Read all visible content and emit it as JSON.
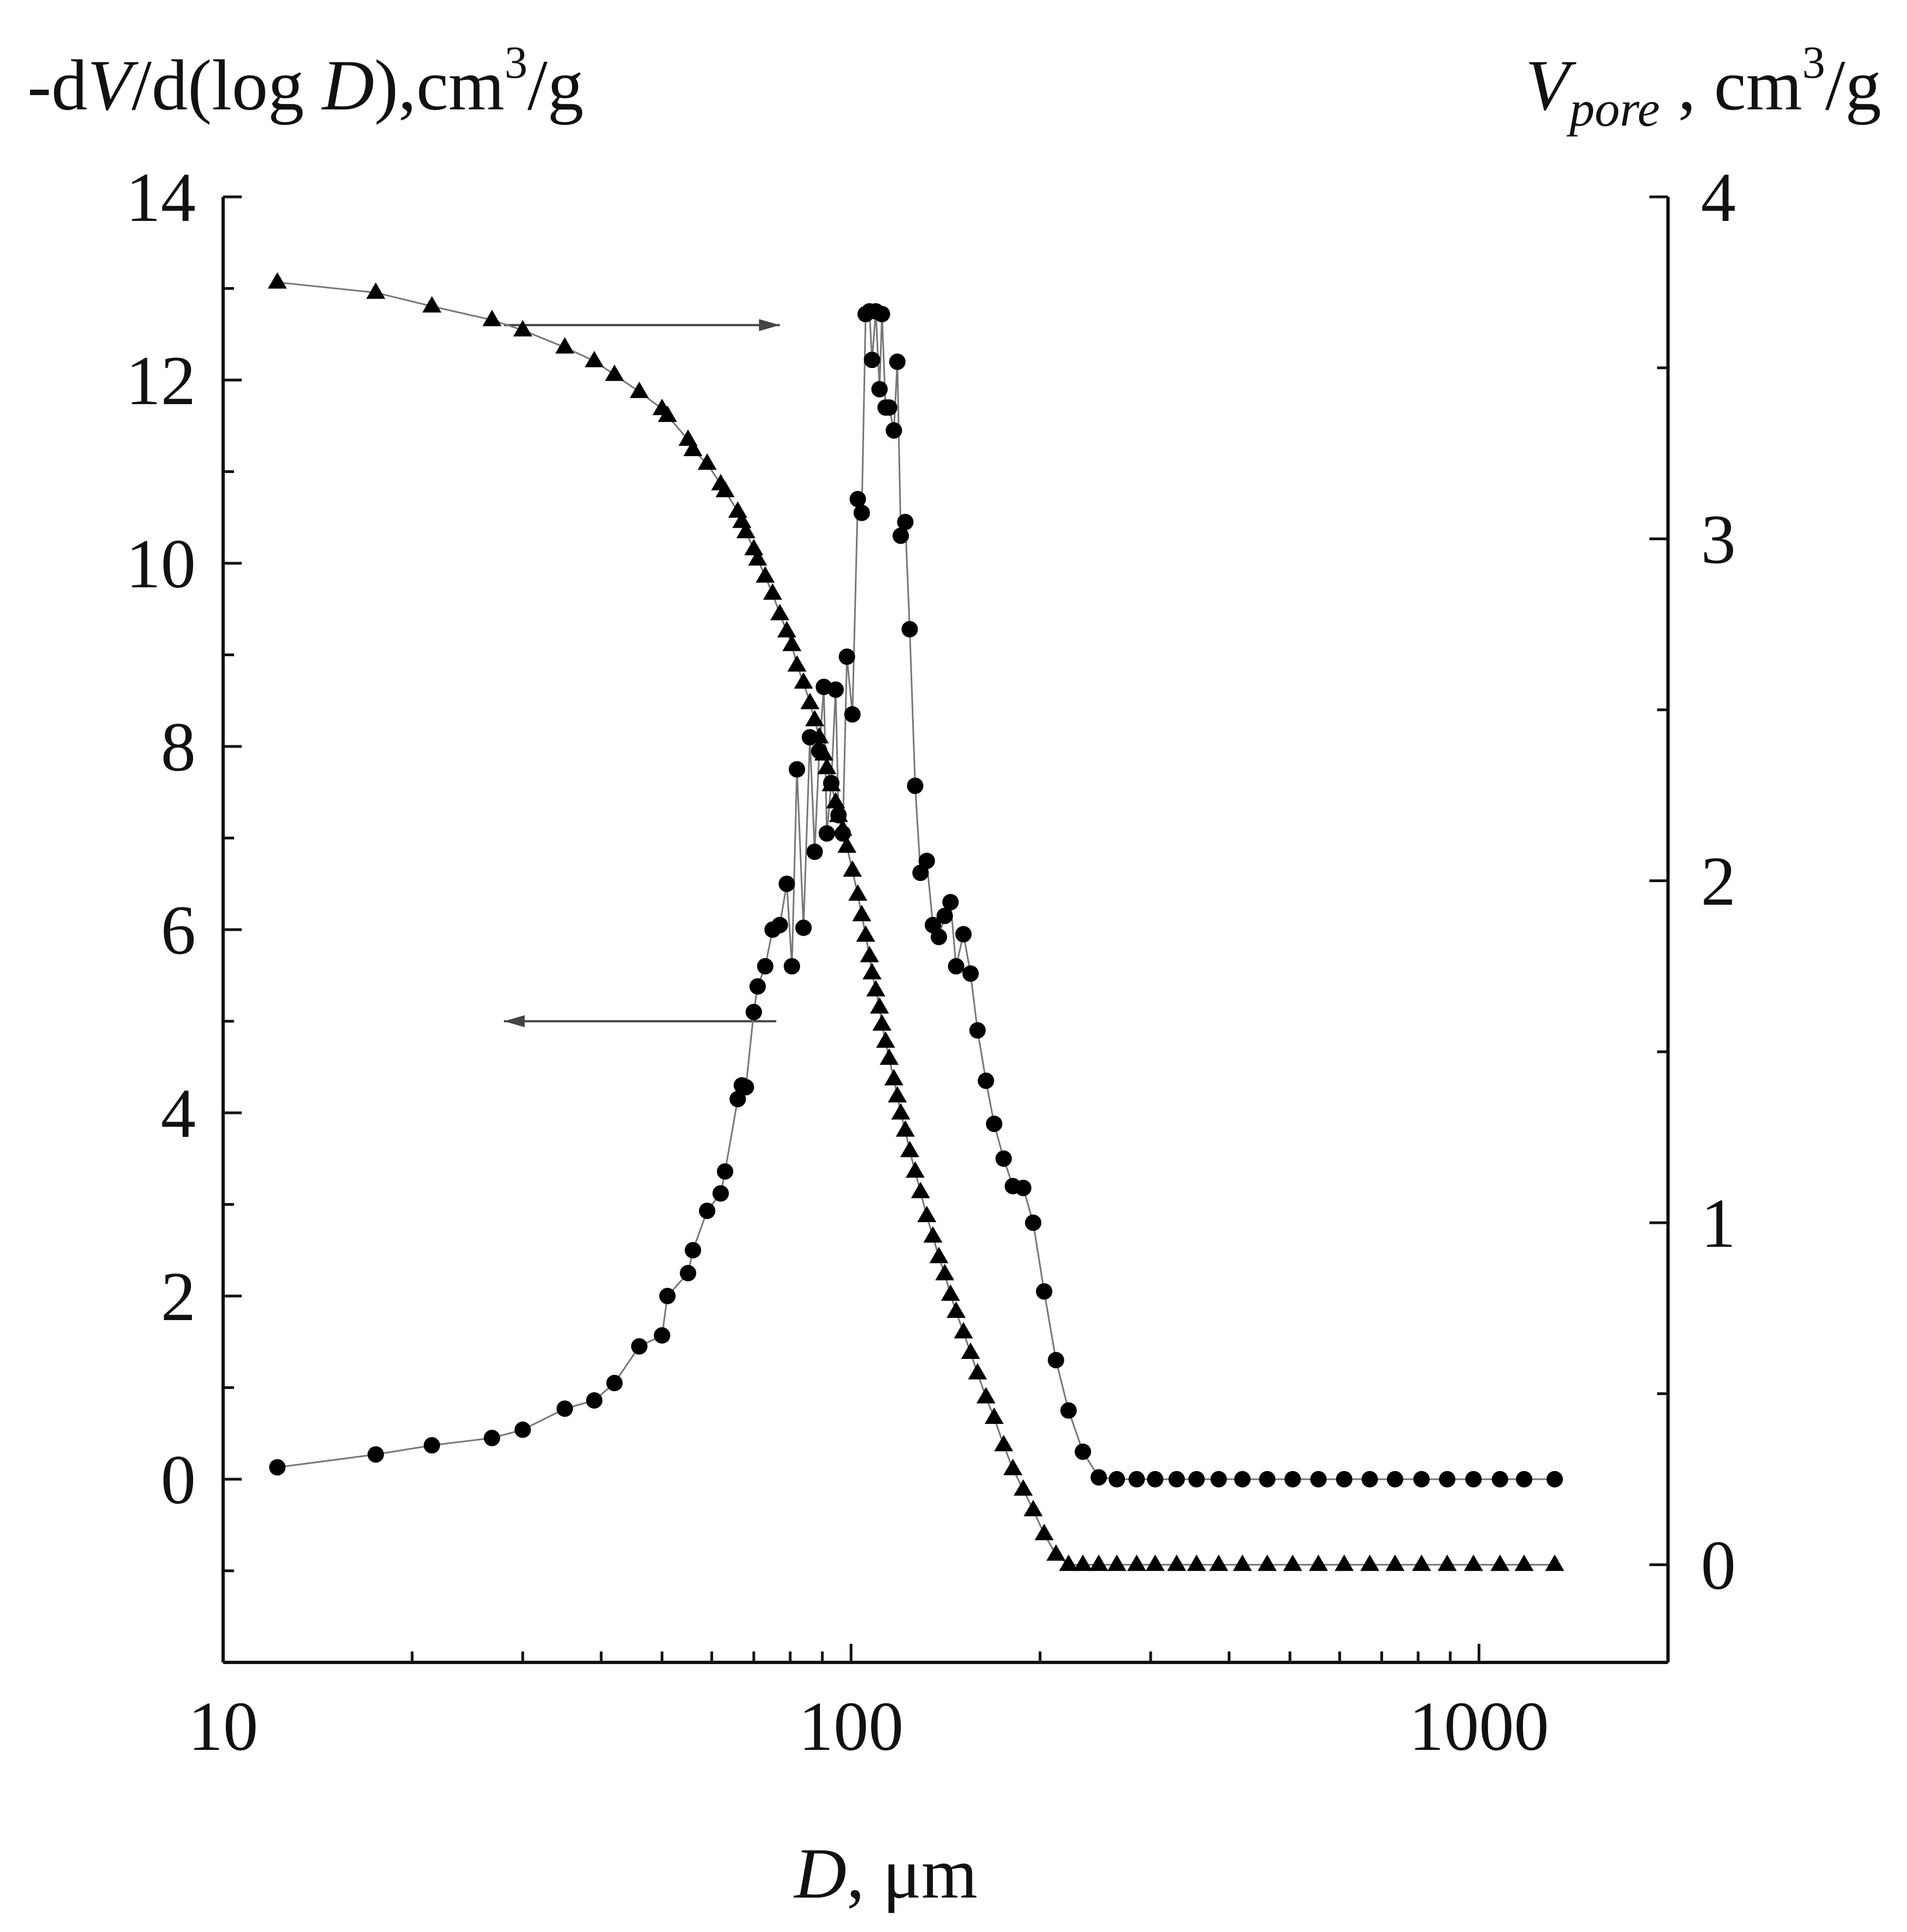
{
  "chart_data": {
    "type": "scatter",
    "x_scale": "log",
    "xlim": [
      10,
      2000
    ],
    "ylim_left": [
      -2,
      14
    ],
    "ylim_right": [
      -0.2857,
      4
    ],
    "xlabel": {
      "italic": "D",
      "rest": ", μm"
    },
    "ylabel_left": {
      "pre": "-d",
      "italic1": "V",
      "mid": "/d(log ",
      "italic2": "D",
      "post": "),cm",
      "sup": "3",
      "tail": "/g"
    },
    "ylabel_right": {
      "italic": "V",
      "sub": "pore",
      "post": " , cm",
      "sup": "3",
      "tail": "/g"
    },
    "x_ticks": [
      10,
      100,
      1000
    ],
    "x_tick_labels": [
      "10",
      "100",
      "1000"
    ],
    "y_left_ticks": [
      0,
      2,
      4,
      6,
      8,
      10,
      12,
      14
    ],
    "y_left_tick_labels": [
      "0",
      "2",
      "4",
      "6",
      "8",
      "10",
      "12",
      "14"
    ],
    "y_right_ticks": [
      0,
      1,
      2,
      3,
      4
    ],
    "y_right_tick_labels": [
      "0",
      "1",
      "2",
      "3",
      "4"
    ],
    "annotations": [
      {
        "text": "arrow pointing right to cumulative pore volume (triangles, right axis)",
        "from": [
          28,
          12.6
        ],
        "to": [
          77,
          12.6
        ],
        "direction": "right"
      },
      {
        "text": "arrow pointing left to differential distribution (circles, left axis)",
        "from": [
          76,
          5.0
        ],
        "to": [
          28,
          5.0
        ],
        "direction": "left"
      }
    ],
    "series": [
      {
        "name": "-dV/d(log D)",
        "axis": "left",
        "marker": "circle",
        "points": [
          [
            12.2,
            0.13
          ],
          [
            17.5,
            0.27
          ],
          [
            21.5,
            0.37
          ],
          [
            26.8,
            0.45
          ],
          [
            30.0,
            0.54
          ],
          [
            35.0,
            0.77
          ],
          [
            39.0,
            0.86
          ],
          [
            42.0,
            1.05
          ],
          [
            46.0,
            1.45
          ],
          [
            50.0,
            1.57
          ],
          [
            51.0,
            2.0
          ],
          [
            55.0,
            2.25
          ],
          [
            56.0,
            2.5
          ],
          [
            59.0,
            2.93
          ],
          [
            62.0,
            3.12
          ],
          [
            63.0,
            3.36
          ],
          [
            66.0,
            4.15
          ],
          [
            67.0,
            4.3
          ],
          [
            68.0,
            4.28
          ],
          [
            70.0,
            5.1
          ],
          [
            71.0,
            5.38
          ],
          [
            73.0,
            5.6
          ],
          [
            75.0,
            6.0
          ],
          [
            77.0,
            6.05
          ],
          [
            79.0,
            6.5
          ],
          [
            80.5,
            5.6
          ],
          [
            82.0,
            7.75
          ],
          [
            84.0,
            6.02
          ],
          [
            86.0,
            8.1
          ],
          [
            87.5,
            6.85
          ],
          [
            89.0,
            7.95
          ],
          [
            90.5,
            8.65
          ],
          [
            91.5,
            7.05
          ],
          [
            93.0,
            7.6
          ],
          [
            94.5,
            8.62
          ],
          [
            95.5,
            7.25
          ],
          [
            97.0,
            7.05
          ],
          [
            98.5,
            8.98
          ],
          [
            100.5,
            8.35
          ],
          [
            102.5,
            10.7
          ],
          [
            104.0,
            10.55
          ],
          [
            105.5,
            12.72
          ],
          [
            107.0,
            12.75
          ],
          [
            108.0,
            12.22
          ],
          [
            109.5,
            12.75
          ],
          [
            111.0,
            11.9
          ],
          [
            112.0,
            12.72
          ],
          [
            113.5,
            11.7
          ],
          [
            115.0,
            11.7
          ],
          [
            117.0,
            11.45
          ],
          [
            118.5,
            12.2
          ],
          [
            120.0,
            10.3
          ],
          [
            122.0,
            10.45
          ],
          [
            124.0,
            9.28
          ],
          [
            126.5,
            7.57
          ],
          [
            129.0,
            6.62
          ],
          [
            132.0,
            6.75
          ],
          [
            135.0,
            6.05
          ],
          [
            138.0,
            5.92
          ],
          [
            141.0,
            6.15
          ],
          [
            144.0,
            6.3
          ],
          [
            147.0,
            5.6
          ],
          [
            151.0,
            5.95
          ],
          [
            155.0,
            5.52
          ],
          [
            159.0,
            4.9
          ],
          [
            164.0,
            4.35
          ],
          [
            169.0,
            3.88
          ],
          [
            175.0,
            3.5
          ],
          [
            181.0,
            3.2
          ],
          [
            188.0,
            3.18
          ],
          [
            195.0,
            2.8
          ],
          [
            203.0,
            2.05
          ],
          [
            212.0,
            1.3
          ],
          [
            222.0,
            0.75
          ],
          [
            234.0,
            0.3
          ],
          [
            248.0,
            0.02
          ],
          [
            265.0,
            0.0
          ],
          [
            285.0,
            0.0
          ],
          [
            305.0,
            0.0
          ],
          [
            330.0,
            0.0
          ],
          [
            355.0,
            0.0
          ],
          [
            385.0,
            0.0
          ],
          [
            420.0,
            0.0
          ],
          [
            460.0,
            0.0
          ],
          [
            505.0,
            0.0
          ],
          [
            555.0,
            0.0
          ],
          [
            610.0,
            0.0
          ],
          [
            670.0,
            0.0
          ],
          [
            735.0,
            0.0
          ],
          [
            810.0,
            0.0
          ],
          [
            890.0,
            0.0
          ],
          [
            980.0,
            0.0
          ],
          [
            1080.0,
            0.0
          ],
          [
            1180.0,
            0.0
          ],
          [
            1320.0,
            0.0
          ]
        ]
      },
      {
        "name": "V_pore",
        "axis": "right",
        "marker": "triangle",
        "points": [
          [
            12.2,
            3.75
          ],
          [
            17.5,
            3.72
          ],
          [
            21.5,
            3.68
          ],
          [
            26.8,
            3.64
          ],
          [
            30.0,
            3.61
          ],
          [
            35.0,
            3.56
          ],
          [
            39.0,
            3.52
          ],
          [
            42.0,
            3.48
          ],
          [
            46.0,
            3.43
          ],
          [
            50.0,
            3.38
          ],
          [
            51.0,
            3.36
          ],
          [
            55.0,
            3.29
          ],
          [
            56.0,
            3.26
          ],
          [
            59.0,
            3.22
          ],
          [
            62.0,
            3.16
          ],
          [
            63.0,
            3.14
          ],
          [
            66.0,
            3.08
          ],
          [
            67.0,
            3.05
          ],
          [
            68.0,
            3.02
          ],
          [
            70.0,
            2.97
          ],
          [
            71.0,
            2.94
          ],
          [
            73.0,
            2.89
          ],
          [
            75.0,
            2.84
          ],
          [
            77.0,
            2.78
          ],
          [
            79.0,
            2.73
          ],
          [
            80.5,
            2.69
          ],
          [
            82.0,
            2.63
          ],
          [
            84.0,
            2.58
          ],
          [
            86.0,
            2.52
          ],
          [
            87.5,
            2.47
          ],
          [
            89.0,
            2.42
          ],
          [
            90.5,
            2.37
          ],
          [
            91.5,
            2.33
          ],
          [
            93.0,
            2.28
          ],
          [
            94.5,
            2.23
          ],
          [
            95.5,
            2.19
          ],
          [
            97.0,
            2.15
          ],
          [
            98.5,
            2.1
          ],
          [
            100.5,
            2.03
          ],
          [
            102.5,
            1.96
          ],
          [
            104.0,
            1.9
          ],
          [
            105.5,
            1.84
          ],
          [
            107.0,
            1.78
          ],
          [
            108.0,
            1.73
          ],
          [
            109.5,
            1.68
          ],
          [
            111.0,
            1.63
          ],
          [
            112.0,
            1.58
          ],
          [
            113.5,
            1.53
          ],
          [
            115.0,
            1.48
          ],
          [
            117.0,
            1.42
          ],
          [
            118.5,
            1.37
          ],
          [
            120.0,
            1.32
          ],
          [
            122.0,
            1.27
          ],
          [
            124.0,
            1.21
          ],
          [
            126.5,
            1.15
          ],
          [
            129.0,
            1.09
          ],
          [
            132.0,
            1.02
          ],
          [
            135.0,
            0.96
          ],
          [
            138.0,
            0.9
          ],
          [
            141.0,
            0.85
          ],
          [
            144.0,
            0.79
          ],
          [
            147.0,
            0.74
          ],
          [
            151.0,
            0.68
          ],
          [
            155.0,
            0.62
          ],
          [
            159.0,
            0.56
          ],
          [
            164.0,
            0.49
          ],
          [
            169.0,
            0.43
          ],
          [
            175.0,
            0.35
          ],
          [
            181.0,
            0.28
          ],
          [
            188.0,
            0.22
          ],
          [
            195.0,
            0.16
          ],
          [
            203.0,
            0.09
          ],
          [
            212.0,
            0.03
          ],
          [
            222.0,
            0.0
          ],
          [
            234.0,
            0.0
          ],
          [
            248.0,
            0.0
          ],
          [
            265.0,
            0.0
          ],
          [
            285.0,
            0.0
          ],
          [
            305.0,
            0.0
          ],
          [
            330.0,
            0.0
          ],
          [
            355.0,
            0.0
          ],
          [
            385.0,
            0.0
          ],
          [
            420.0,
            0.0
          ],
          [
            460.0,
            0.0
          ],
          [
            505.0,
            0.0
          ],
          [
            555.0,
            0.0
          ],
          [
            610.0,
            0.0
          ],
          [
            670.0,
            0.0
          ],
          [
            735.0,
            0.0
          ],
          [
            810.0,
            0.0
          ],
          [
            890.0,
            0.0
          ],
          [
            980.0,
            0.0
          ],
          [
            1080.0,
            0.0
          ],
          [
            1180.0,
            0.0
          ],
          [
            1320.0,
            0.0
          ]
        ]
      }
    ]
  }
}
